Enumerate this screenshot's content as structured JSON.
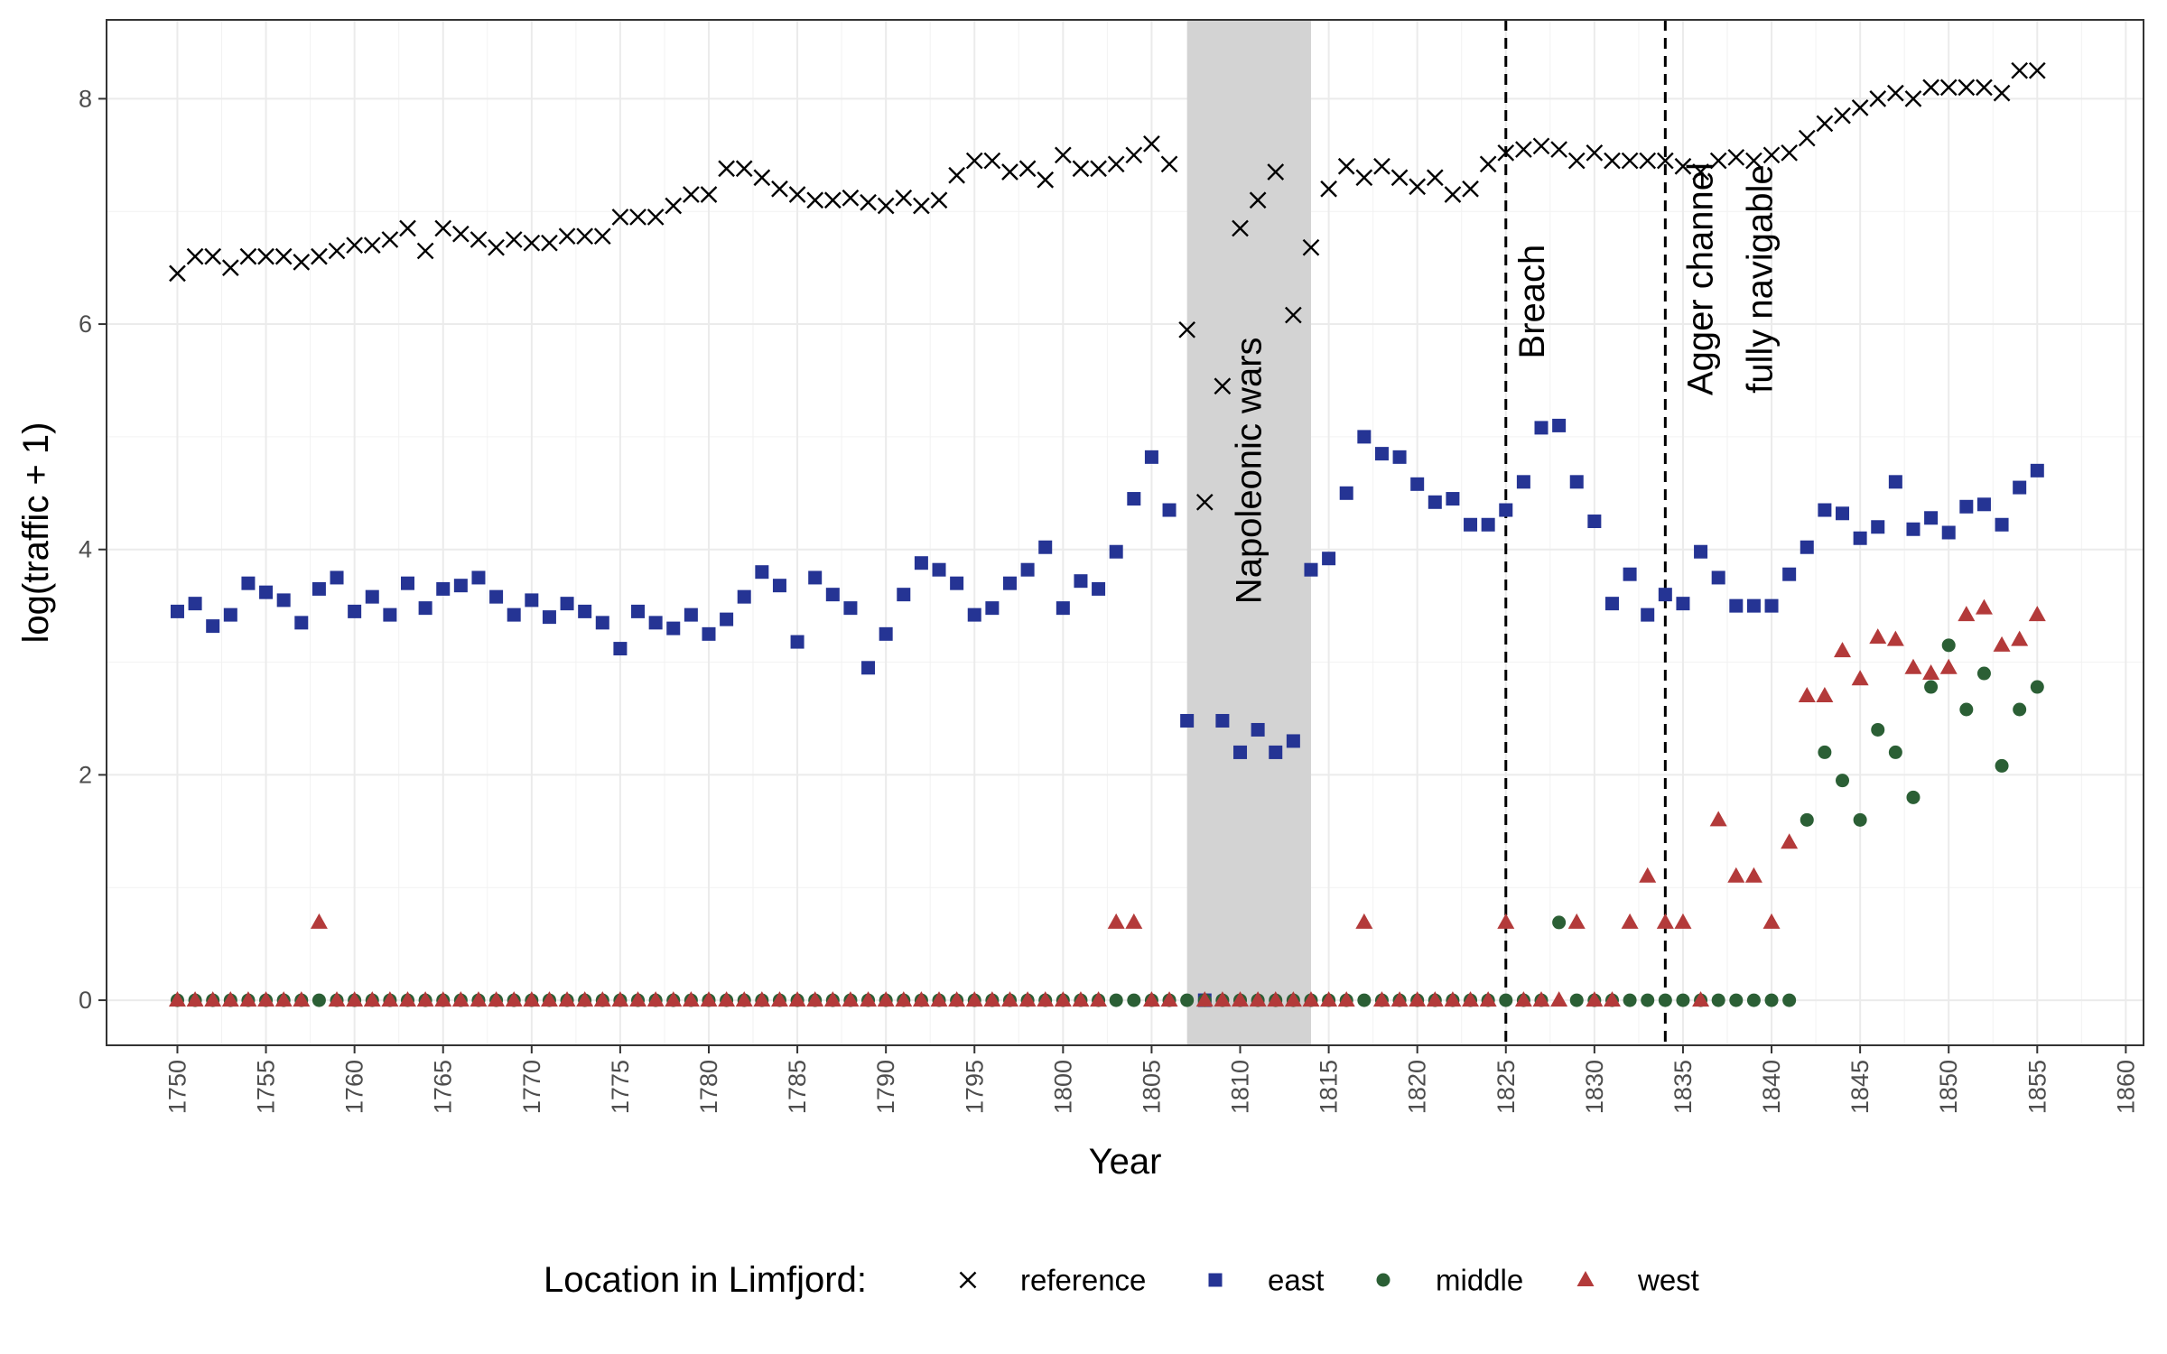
{
  "chart_data": {
    "type": "scatter",
    "xlabel": "Year",
    "ylabel": "log(traffic + 1)",
    "xlim": [
      1746,
      1861
    ],
    "ylim": [
      -0.4,
      8.7
    ],
    "x_ticks": [
      1750,
      1755,
      1760,
      1765,
      1770,
      1775,
      1780,
      1785,
      1790,
      1795,
      1800,
      1805,
      1810,
      1815,
      1820,
      1825,
      1830,
      1835,
      1840,
      1845,
      1850,
      1855,
      1860
    ],
    "y_ticks": [
      0,
      2,
      4,
      6,
      8
    ],
    "grid": true,
    "legend": {
      "position": "bottom",
      "title": "Location in Limfjord:",
      "entries": [
        {
          "name": "reference",
          "symbol": "cross",
          "color": "#000000"
        },
        {
          "name": "east",
          "symbol": "square",
          "color": "#253494"
        },
        {
          "name": "middle",
          "symbol": "circle",
          "color": "#2b5f35"
        },
        {
          "name": "west",
          "symbol": "triangle",
          "color": "#b33a3a"
        }
      ]
    },
    "shaded_regions": [
      {
        "from": 1807,
        "to": 1814,
        "label": "Napoleonic wars",
        "label_x": 1810.5,
        "label_y": 4.7,
        "color": "#d3d3d3"
      }
    ],
    "vlines": [
      {
        "x": 1825,
        "label_lines": [
          "Breach"
        ],
        "label_x": 1826.5,
        "label_y": 6.2,
        "style": "dashed"
      },
      {
        "x": 1834,
        "label_lines": [
          "Agger channel",
          "fully navigable"
        ],
        "label_x": 1836,
        "label_y": 6.4,
        "style": "dashed"
      }
    ],
    "series": [
      {
        "name": "reference",
        "symbol": "cross",
        "color": "#000000",
        "x": [
          1750,
          1751,
          1752,
          1753,
          1754,
          1755,
          1756,
          1757,
          1758,
          1759,
          1760,
          1761,
          1762,
          1763,
          1764,
          1765,
          1766,
          1767,
          1768,
          1769,
          1770,
          1771,
          1772,
          1773,
          1774,
          1775,
          1776,
          1777,
          1778,
          1779,
          1780,
          1781,
          1782,
          1783,
          1784,
          1785,
          1786,
          1787,
          1788,
          1789,
          1790,
          1791,
          1792,
          1793,
          1794,
          1795,
          1796,
          1797,
          1798,
          1799,
          1800,
          1801,
          1802,
          1803,
          1804,
          1805,
          1806,
          1807,
          1808,
          1809,
          1810,
          1811,
          1812,
          1813,
          1814,
          1815,
          1816,
          1817,
          1818,
          1819,
          1820,
          1821,
          1822,
          1823,
          1824,
          1825,
          1826,
          1827,
          1828,
          1829,
          1830,
          1831,
          1832,
          1833,
          1834,
          1835,
          1836,
          1837,
          1838,
          1839,
          1840,
          1841,
          1842,
          1843,
          1844,
          1845,
          1846,
          1847,
          1848,
          1849,
          1850,
          1851,
          1852,
          1853,
          1854,
          1855
        ],
        "values": [
          6.45,
          6.6,
          6.6,
          6.5,
          6.6,
          6.6,
          6.6,
          6.55,
          6.6,
          6.65,
          6.7,
          6.7,
          6.75,
          6.85,
          6.65,
          6.85,
          6.8,
          6.75,
          6.68,
          6.75,
          6.72,
          6.72,
          6.78,
          6.78,
          6.78,
          6.95,
          6.95,
          6.95,
          7.05,
          7.15,
          7.15,
          7.38,
          7.38,
          7.3,
          7.2,
          7.15,
          7.1,
          7.1,
          7.12,
          7.08,
          7.05,
          7.12,
          7.05,
          7.1,
          7.32,
          7.45,
          7.45,
          7.35,
          7.38,
          7.28,
          7.5,
          7.38,
          7.38,
          7.42,
          7.5,
          7.6,
          7.42,
          5.95,
          4.42,
          5.45,
          6.85,
          7.1,
          7.35,
          6.08,
          6.68,
          7.2,
          7.4,
          7.3,
          7.4,
          7.3,
          7.22,
          7.3,
          7.15,
          7.2,
          7.42,
          7.52,
          7.55,
          7.58,
          7.55,
          7.45,
          7.52,
          7.45,
          7.45,
          7.45,
          7.45,
          7.4,
          7.35,
          7.45,
          7.48,
          7.45,
          7.5,
          7.52,
          7.65,
          7.78,
          7.85,
          7.92,
          8.0,
          8.05,
          8.0,
          8.1,
          8.1,
          8.1,
          8.1,
          8.05,
          8.25,
          8.25
        ]
      },
      {
        "name": "east",
        "symbol": "square",
        "color": "#253494",
        "x": [
          1750,
          1751,
          1752,
          1753,
          1754,
          1755,
          1756,
          1757,
          1758,
          1759,
          1760,
          1761,
          1762,
          1763,
          1764,
          1765,
          1766,
          1767,
          1768,
          1769,
          1770,
          1771,
          1772,
          1773,
          1774,
          1775,
          1776,
          1777,
          1778,
          1779,
          1780,
          1781,
          1782,
          1783,
          1784,
          1785,
          1786,
          1787,
          1788,
          1789,
          1790,
          1791,
          1792,
          1793,
          1794,
          1795,
          1796,
          1797,
          1798,
          1799,
          1800,
          1801,
          1802,
          1803,
          1804,
          1805,
          1806,
          1807,
          1808,
          1809,
          1810,
          1811,
          1812,
          1813,
          1814,
          1815,
          1816,
          1817,
          1818,
          1819,
          1820,
          1821,
          1822,
          1823,
          1824,
          1825,
          1826,
          1827,
          1828,
          1829,
          1830,
          1831,
          1832,
          1833,
          1834,
          1835,
          1836,
          1837,
          1838,
          1839,
          1840,
          1841,
          1842,
          1843,
          1844,
          1845,
          1846,
          1847,
          1848,
          1849,
          1850,
          1851,
          1852,
          1853,
          1854,
          1855
        ],
        "values": [
          3.45,
          3.52,
          3.32,
          3.42,
          3.7,
          3.62,
          3.55,
          3.35,
          3.65,
          3.75,
          3.45,
          3.58,
          3.42,
          3.7,
          3.48,
          3.65,
          3.68,
          3.75,
          3.58,
          3.42,
          3.55,
          3.4,
          3.52,
          3.45,
          3.35,
          3.12,
          3.45,
          3.35,
          3.3,
          3.42,
          3.25,
          3.38,
          3.58,
          3.8,
          3.68,
          3.18,
          3.75,
          3.6,
          3.48,
          2.95,
          3.25,
          3.6,
          3.88,
          3.82,
          3.7,
          3.42,
          3.48,
          3.7,
          3.82,
          4.02,
          3.48,
          3.72,
          3.65,
          3.98,
          4.45,
          4.82,
          4.35,
          2.48,
          0.0,
          2.48,
          2.2,
          2.4,
          2.2,
          2.3,
          3.82,
          3.92,
          4.5,
          5.0,
          4.85,
          4.82,
          4.58,
          4.42,
          4.45,
          4.22,
          4.22,
          4.35,
          4.6,
          5.08,
          5.1,
          4.6,
          4.25,
          3.52,
          3.78,
          3.42,
          3.6,
          3.52,
          3.98,
          3.75,
          3.5,
          3.5,
          3.5,
          3.78,
          4.02,
          4.35,
          4.32,
          4.1,
          4.2,
          4.6,
          4.18,
          4.28,
          4.15,
          4.38,
          4.4,
          4.22,
          4.55,
          4.7
        ]
      },
      {
        "name": "middle",
        "symbol": "circle",
        "color": "#2b5f35",
        "x": [
          1750,
          1751,
          1752,
          1753,
          1754,
          1755,
          1756,
          1757,
          1758,
          1759,
          1760,
          1761,
          1762,
          1763,
          1764,
          1765,
          1766,
          1767,
          1768,
          1769,
          1770,
          1771,
          1772,
          1773,
          1774,
          1775,
          1776,
          1777,
          1778,
          1779,
          1780,
          1781,
          1782,
          1783,
          1784,
          1785,
          1786,
          1787,
          1788,
          1789,
          1790,
          1791,
          1792,
          1793,
          1794,
          1795,
          1796,
          1797,
          1798,
          1799,
          1800,
          1801,
          1802,
          1803,
          1804,
          1805,
          1806,
          1807,
          1808,
          1809,
          1810,
          1811,
          1812,
          1813,
          1814,
          1815,
          1816,
          1817,
          1818,
          1819,
          1820,
          1821,
          1822,
          1823,
          1824,
          1825,
          1826,
          1827,
          1828,
          1829,
          1830,
          1831,
          1832,
          1833,
          1834,
          1835,
          1836,
          1837,
          1838,
          1839,
          1840,
          1841,
          1842,
          1843,
          1844,
          1845,
          1846,
          1847,
          1848,
          1849,
          1850,
          1851,
          1852,
          1853,
          1854,
          1855
        ],
        "values": [
          0,
          0,
          0,
          0,
          0,
          0,
          0,
          0,
          0,
          0,
          0,
          0,
          0,
          0,
          0,
          0,
          0,
          0,
          0,
          0,
          0,
          0,
          0,
          0,
          0,
          0,
          0,
          0,
          0,
          0,
          0,
          0,
          0,
          0,
          0,
          0,
          0,
          0,
          0,
          0,
          0,
          0,
          0,
          0,
          0,
          0,
          0,
          0,
          0,
          0,
          0,
          0,
          0,
          0,
          0,
          0,
          0,
          0,
          0,
          0,
          0,
          0,
          0,
          0,
          0,
          0,
          0,
          0,
          0,
          0,
          0,
          0,
          0,
          0,
          0,
          0,
          0,
          0,
          0.69,
          0,
          0,
          0,
          0,
          0,
          0,
          0,
          0,
          0,
          0,
          0,
          0,
          0,
          1.6,
          2.2,
          1.95,
          1.6,
          2.4,
          2.2,
          1.8,
          2.78,
          3.15,
          2.58,
          2.9,
          2.08,
          2.58,
          2.78
        ]
      },
      {
        "name": "west",
        "symbol": "triangle",
        "color": "#b33a3a",
        "x": [
          1750,
          1751,
          1752,
          1753,
          1754,
          1755,
          1756,
          1757,
          1758,
          1759,
          1760,
          1761,
          1762,
          1763,
          1764,
          1765,
          1766,
          1767,
          1768,
          1769,
          1770,
          1771,
          1772,
          1773,
          1774,
          1775,
          1776,
          1777,
          1778,
          1779,
          1780,
          1781,
          1782,
          1783,
          1784,
          1785,
          1786,
          1787,
          1788,
          1789,
          1790,
          1791,
          1792,
          1793,
          1794,
          1795,
          1796,
          1797,
          1798,
          1799,
          1800,
          1801,
          1802,
          1804,
          1805,
          1806,
          1808,
          1809,
          1810,
          1811,
          1812,
          1813,
          1814,
          1815,
          1816,
          1817,
          1818,
          1819,
          1820,
          1821,
          1822,
          1823,
          1824,
          1825,
          1826,
          1827,
          1828,
          1829,
          1830,
          1831,
          1832,
          1833,
          1834,
          1835,
          1836,
          1837,
          1838,
          1839,
          1840,
          1841,
          1842,
          1843,
          1844,
          1845,
          1846,
          1847,
          1848,
          1849,
          1850,
          1851,
          1852,
          1853,
          1854,
          1855,
          1803
        ],
        "values": [
          0,
          0,
          0,
          0,
          0,
          0,
          0,
          0,
          0.69,
          0,
          0,
          0,
          0,
          0,
          0,
          0,
          0,
          0,
          0,
          0,
          0,
          0,
          0,
          0,
          0,
          0,
          0,
          0,
          0,
          0,
          0,
          0,
          0,
          0,
          0,
          0,
          0,
          0,
          0,
          0,
          0,
          0,
          0,
          0,
          0,
          0,
          0,
          0,
          0,
          0,
          0,
          0,
          0,
          0.69,
          0,
          0,
          0,
          0,
          0,
          0,
          0,
          0,
          0,
          0,
          0,
          0.69,
          0,
          0,
          0,
          0,
          0,
          0,
          0,
          0.69,
          0,
          0,
          0,
          0.69,
          0,
          0,
          0.69,
          1.1,
          0.69,
          0.69,
          0,
          1.6,
          1.1,
          1.1,
          0.69,
          1.4,
          2.7,
          2.7,
          3.1,
          2.85,
          3.22,
          3.2,
          2.95,
          2.9,
          2.95,
          3.42,
          3.48,
          3.15,
          3.2,
          3.42,
          0.69
        ]
      }
    ]
  }
}
